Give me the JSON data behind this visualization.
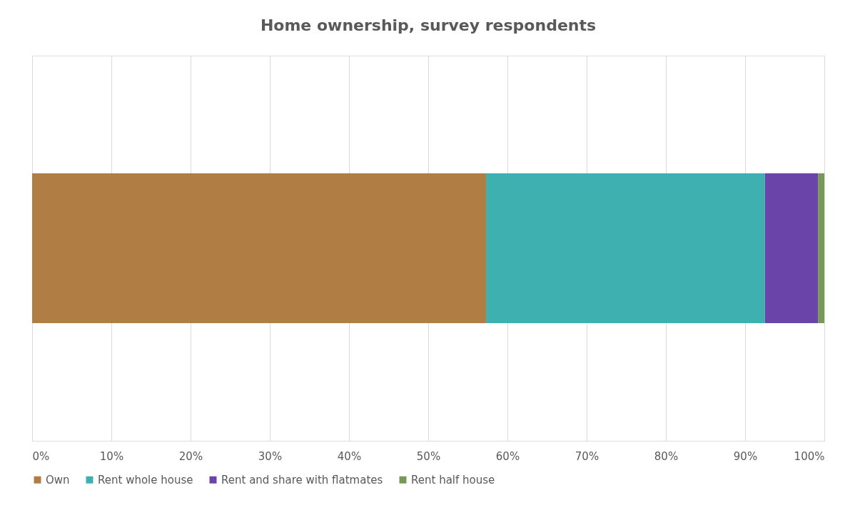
{
  "chart_data": {
    "type": "bar",
    "title": "Home ownership, survey respondents",
    "orientation": "horizontal",
    "stacked": true,
    "categories": [
      null
    ],
    "series": [
      {
        "name": "Own",
        "color": "#b07d44",
        "values": [
          57.3
        ]
      },
      {
        "name": "Rent whole house",
        "color": "#3eb0b0",
        "values": [
          35.2
        ]
      },
      {
        "name": "Rent and share with flatmates",
        "color": "#6a44a8",
        "values": [
          6.7
        ]
      },
      {
        "name": "Rent half house",
        "color": "#78985a",
        "values": [
          0.8
        ]
      }
    ],
    "xlim": [
      0,
      100
    ],
    "xticks": [
      {
        "value": 0,
        "label": "0%"
      },
      {
        "value": 10,
        "label": "10%"
      },
      {
        "value": 20,
        "label": "20%"
      },
      {
        "value": 30,
        "label": "30%"
      },
      {
        "value": 40,
        "label": "40%"
      },
      {
        "value": 50,
        "label": "50%"
      },
      {
        "value": 60,
        "label": "60%"
      },
      {
        "value": 70,
        "label": "70%"
      },
      {
        "value": 80,
        "label": "80%"
      },
      {
        "value": 90,
        "label": "90%"
      },
      {
        "value": 100,
        "label": "100%"
      }
    ],
    "grid": "x",
    "legend": "bottom"
  }
}
